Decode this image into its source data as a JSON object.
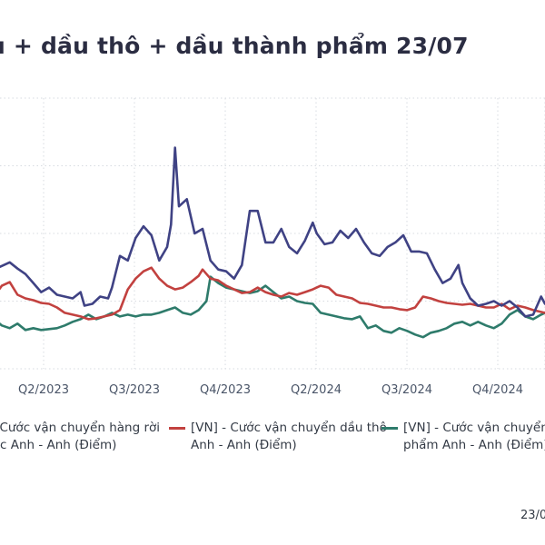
{
  "title": "u + dầu thô + dầu thành phẩm 23/07",
  "footer_date": "23/0",
  "legend": [
    {
      "line1": " - Cước vận chuyển hàng rời",
      "line2": "c Anh - Anh (Điểm)",
      "color": "#3f4284"
    },
    {
      "line1": "[VN] - Cước vận chuyển dầu thô",
      "line2": "Anh - Anh (Điểm)",
      "color": "#c2413f"
    },
    {
      "line1": "[VN] - Cước vận chuyển d",
      "line2": "phẩm Anh - Anh (Điểm)",
      "color": "#2e7b6b"
    }
  ],
  "chart_data": {
    "type": "line",
    "title": "u + dầu thô + dầu thành phẩm 23/07",
    "xlabel": "",
    "ylabel": "",
    "x_ticks": [
      "Q2/2023",
      "Q3/2023",
      "Q4/2023",
      "Q2/2024",
      "Q3/2024",
      "Q4/2024"
    ],
    "x_range_index": [
      0,
      300
    ],
    "y_range": [
      0,
      300
    ],
    "grid": true,
    "legend_position": "bottom",
    "series": [
      {
        "name": "- Cước vận chuyển hàng rời c Anh - Anh (Điểm)",
        "color": "#3f4284",
        "points": [
          [
            0,
            112
          ],
          [
            4,
            118
          ],
          [
            8,
            138
          ],
          [
            12,
            131
          ],
          [
            16,
            125
          ],
          [
            20,
            110
          ],
          [
            24,
            114
          ],
          [
            28,
            118
          ],
          [
            32,
            111
          ],
          [
            36,
            105
          ],
          [
            40,
            95
          ],
          [
            44,
            85
          ],
          [
            48,
            90
          ],
          [
            52,
            82
          ],
          [
            56,
            80
          ],
          [
            60,
            78
          ],
          [
            64,
            85
          ],
          [
            66,
            70
          ],
          [
            70,
            72
          ],
          [
            74,
            80
          ],
          [
            78,
            78
          ],
          [
            80,
            90
          ],
          [
            84,
            125
          ],
          [
            88,
            120
          ],
          [
            92,
            145
          ],
          [
            96,
            158
          ],
          [
            100,
            148
          ],
          [
            104,
            120
          ],
          [
            108,
            135
          ],
          [
            110,
            160
          ],
          [
            112,
            245
          ],
          [
            114,
            180
          ],
          [
            118,
            188
          ],
          [
            122,
            150
          ],
          [
            126,
            155
          ],
          [
            130,
            120
          ],
          [
            134,
            110
          ],
          [
            138,
            108
          ],
          [
            142,
            100
          ],
          [
            146,
            115
          ],
          [
            150,
            175
          ],
          [
            154,
            175
          ],
          [
            158,
            140
          ],
          [
            162,
            140
          ],
          [
            166,
            155
          ],
          [
            170,
            135
          ],
          [
            174,
            128
          ],
          [
            178,
            142
          ],
          [
            182,
            162
          ],
          [
            184,
            150
          ],
          [
            188,
            138
          ],
          [
            192,
            140
          ],
          [
            196,
            153
          ],
          [
            200,
            145
          ],
          [
            204,
            155
          ],
          [
            208,
            140
          ],
          [
            212,
            128
          ],
          [
            216,
            125
          ],
          [
            220,
            135
          ],
          [
            224,
            140
          ],
          [
            228,
            148
          ],
          [
            232,
            130
          ],
          [
            236,
            130
          ],
          [
            240,
            128
          ],
          [
            244,
            110
          ],
          [
            248,
            95
          ],
          [
            252,
            100
          ],
          [
            256,
            115
          ],
          [
            258,
            95
          ],
          [
            262,
            78
          ],
          [
            266,
            70
          ],
          [
            270,
            72
          ],
          [
            274,
            75
          ],
          [
            278,
            70
          ],
          [
            282,
            75
          ],
          [
            286,
            68
          ],
          [
            290,
            58
          ],
          [
            294,
            60
          ],
          [
            298,
            80
          ],
          [
            300,
            72
          ]
        ]
      },
      {
        "name": "[VN] - Cước vận chuyển dầu thô Anh - Anh (Điểm)",
        "color": "#c2413f",
        "points": [
          [
            0,
            110
          ],
          [
            4,
            108
          ],
          [
            8,
            118
          ],
          [
            12,
            95
          ],
          [
            16,
            88
          ],
          [
            20,
            80
          ],
          [
            24,
            92
          ],
          [
            28,
            96
          ],
          [
            32,
            82
          ],
          [
            36,
            78
          ],
          [
            40,
            76
          ],
          [
            44,
            73
          ],
          [
            48,
            72
          ],
          [
            52,
            68
          ],
          [
            56,
            62
          ],
          [
            60,
            60
          ],
          [
            64,
            58
          ],
          [
            68,
            55
          ],
          [
            72,
            56
          ],
          [
            76,
            58
          ],
          [
            80,
            60
          ],
          [
            84,
            65
          ],
          [
            88,
            88
          ],
          [
            92,
            100
          ],
          [
            96,
            108
          ],
          [
            100,
            112
          ],
          [
            104,
            100
          ],
          [
            108,
            92
          ],
          [
            112,
            88
          ],
          [
            116,
            90
          ],
          [
            120,
            96
          ],
          [
            124,
            103
          ],
          [
            126,
            110
          ],
          [
            130,
            100
          ],
          [
            134,
            98
          ],
          [
            138,
            92
          ],
          [
            142,
            88
          ],
          [
            146,
            84
          ],
          [
            150,
            85
          ],
          [
            154,
            90
          ],
          [
            158,
            85
          ],
          [
            162,
            82
          ],
          [
            166,
            80
          ],
          [
            170,
            84
          ],
          [
            174,
            82
          ],
          [
            178,
            85
          ],
          [
            182,
            88
          ],
          [
            186,
            92
          ],
          [
            190,
            90
          ],
          [
            194,
            82
          ],
          [
            198,
            80
          ],
          [
            202,
            78
          ],
          [
            206,
            73
          ],
          [
            210,
            72
          ],
          [
            214,
            70
          ],
          [
            218,
            68
          ],
          [
            222,
            68
          ],
          [
            226,
            66
          ],
          [
            230,
            65
          ],
          [
            234,
            68
          ],
          [
            238,
            80
          ],
          [
            242,
            78
          ],
          [
            246,
            75
          ],
          [
            250,
            73
          ],
          [
            254,
            72
          ],
          [
            258,
            71
          ],
          [
            262,
            72
          ],
          [
            266,
            70
          ],
          [
            270,
            68
          ],
          [
            274,
            68
          ],
          [
            278,
            72
          ],
          [
            282,
            66
          ],
          [
            286,
            70
          ],
          [
            290,
            68
          ],
          [
            294,
            65
          ],
          [
            298,
            63
          ],
          [
            300,
            62
          ]
        ]
      },
      {
        "name": "[VN] - Cước vận chuyển d phẩm Anh - Anh (Điểm)",
        "color": "#2e7b6b",
        "points": [
          [
            0,
            58
          ],
          [
            4,
            70
          ],
          [
            8,
            85
          ],
          [
            12,
            90
          ],
          [
            16,
            70
          ],
          [
            20,
            55
          ],
          [
            24,
            48
          ],
          [
            28,
            45
          ],
          [
            32,
            50
          ],
          [
            36,
            43
          ],
          [
            40,
            45
          ],
          [
            44,
            43
          ],
          [
            48,
            44
          ],
          [
            52,
            45
          ],
          [
            56,
            48
          ],
          [
            60,
            52
          ],
          [
            64,
            55
          ],
          [
            68,
            60
          ],
          [
            72,
            55
          ],
          [
            76,
            58
          ],
          [
            80,
            62
          ],
          [
            84,
            58
          ],
          [
            88,
            60
          ],
          [
            92,
            58
          ],
          [
            96,
            60
          ],
          [
            100,
            60
          ],
          [
            104,
            62
          ],
          [
            108,
            65
          ],
          [
            112,
            68
          ],
          [
            116,
            62
          ],
          [
            120,
            60
          ],
          [
            124,
            65
          ],
          [
            128,
            75
          ],
          [
            130,
            102
          ],
          [
            134,
            95
          ],
          [
            138,
            90
          ],
          [
            142,
            88
          ],
          [
            146,
            86
          ],
          [
            150,
            84
          ],
          [
            154,
            86
          ],
          [
            158,
            92
          ],
          [
            162,
            85
          ],
          [
            166,
            78
          ],
          [
            170,
            80
          ],
          [
            174,
            75
          ],
          [
            178,
            73
          ],
          [
            182,
            72
          ],
          [
            186,
            62
          ],
          [
            190,
            60
          ],
          [
            194,
            58
          ],
          [
            198,
            56
          ],
          [
            202,
            55
          ],
          [
            206,
            58
          ],
          [
            210,
            45
          ],
          [
            214,
            48
          ],
          [
            218,
            42
          ],
          [
            222,
            40
          ],
          [
            226,
            45
          ],
          [
            230,
            42
          ],
          [
            234,
            38
          ],
          [
            238,
            35
          ],
          [
            242,
            40
          ],
          [
            246,
            42
          ],
          [
            250,
            45
          ],
          [
            254,
            50
          ],
          [
            258,
            52
          ],
          [
            262,
            48
          ],
          [
            266,
            52
          ],
          [
            270,
            48
          ],
          [
            274,
            45
          ],
          [
            278,
            50
          ],
          [
            282,
            60
          ],
          [
            286,
            65
          ],
          [
            290,
            58
          ],
          [
            294,
            55
          ],
          [
            298,
            60
          ],
          [
            300,
            62
          ]
        ]
      }
    ]
  }
}
